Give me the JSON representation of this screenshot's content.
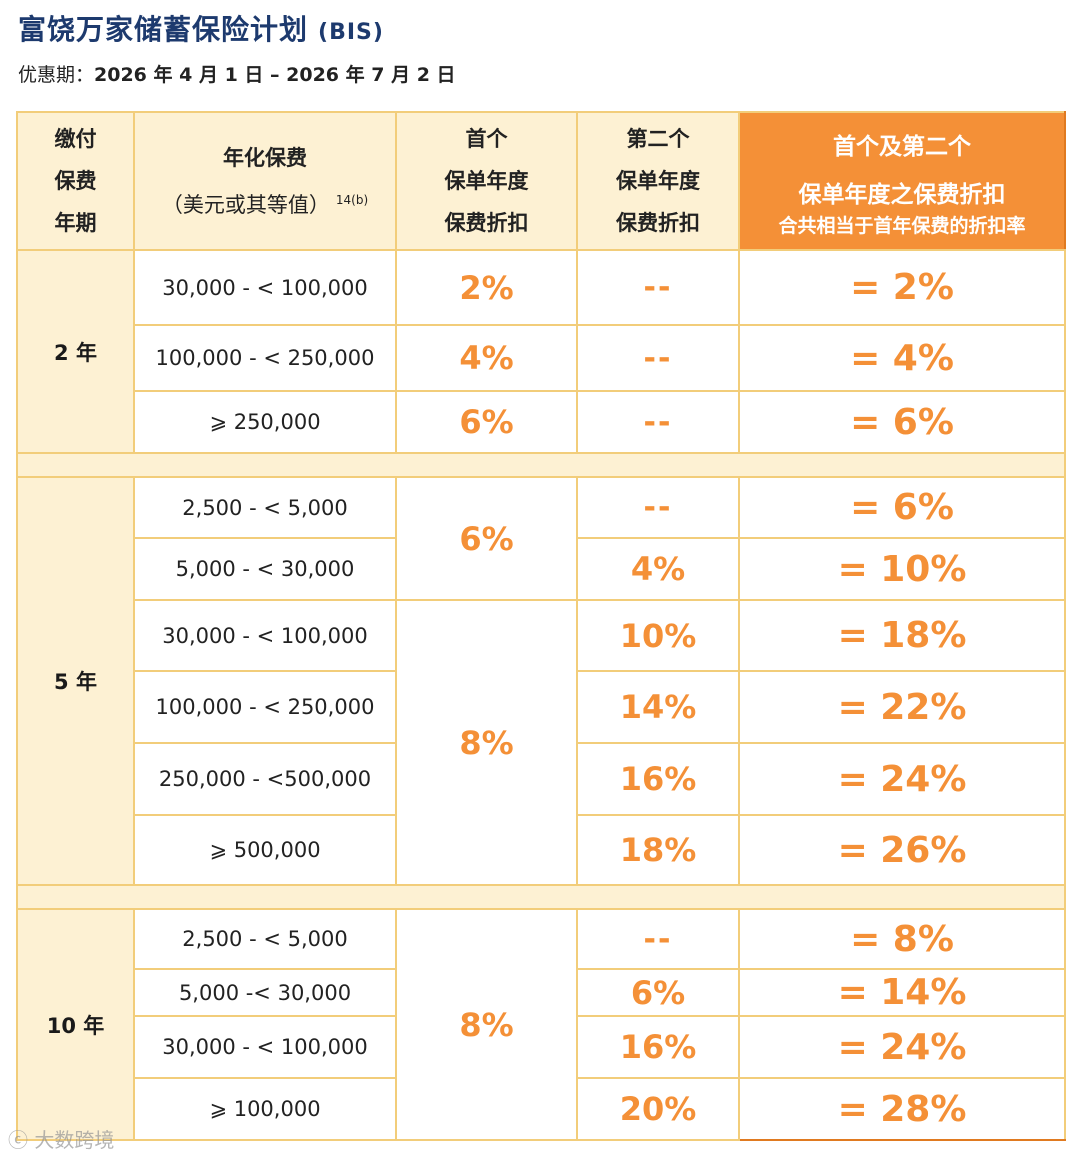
{
  "title": "富饶万家储蓄保险计划",
  "title_code": "(BIS)",
  "promo": {
    "label": "优惠期：",
    "text": "2026 年 4 月 1 日 – 2026 年 7 月 2 日"
  },
  "headers": {
    "term_line1": "缴付",
    "term_line2": "保费",
    "term_line3": "年期",
    "premium_line1": "年化保费",
    "premium_line2": "（美元或其等值）",
    "premium_note": "14(b)",
    "first_line1": "首个",
    "first_line2": "保单年度",
    "first_line3": "保费折扣",
    "second_line1": "第二个",
    "second_line2": "保单年度",
    "second_line3": "保费折扣",
    "total_line1": "首个及第二个",
    "total_line2": "保单年度之保费折扣",
    "total_line3": "合共相当于首年保费的折扣率"
  },
  "groups": [
    {
      "term": "2 年",
      "rows": [
        {
          "premium": "30,000 - < 100,000",
          "first": "2%",
          "second": "--",
          "total": "= 2%"
        },
        {
          "premium": "100,000 - < 250,000",
          "first": "4%",
          "second": "--",
          "total": "= 4%"
        },
        {
          "premium": "⩾ 250,000",
          "first": "6%",
          "second": "--",
          "total": "= 6%"
        }
      ]
    },
    {
      "term": "5 年",
      "first_a": "6%",
      "first_b": "8%",
      "rows": [
        {
          "premium": "2,500 - < 5,000",
          "second": "--",
          "total": "= 6%"
        },
        {
          "premium": "5,000 - < 30,000",
          "second": "4%",
          "total": "= 10%"
        },
        {
          "premium": "30,000 - < 100,000",
          "second": "10%",
          "total": "= 18%"
        },
        {
          "premium": "100,000 - < 250,000",
          "second": "14%",
          "total": "= 22%"
        },
        {
          "premium": "250,000 - <500,000",
          "second": "16%",
          "total": "= 24%"
        },
        {
          "premium": "⩾ 500,000",
          "second": "18%",
          "total": "= 26%"
        }
      ]
    },
    {
      "term": "10 年",
      "first": "8%",
      "rows": [
        {
          "premium": "2,500 - < 5,000",
          "second": "--",
          "total": "= 8%"
        },
        {
          "premium": "5,000 -< 30,000",
          "second": "6%",
          "total": "= 14%"
        },
        {
          "premium": "30,000 - < 100,000",
          "second": "16%",
          "total": "= 24%"
        },
        {
          "premium": "⩾ 100,000",
          "second": "20%",
          "total": "= 28%"
        }
      ]
    }
  ],
  "watermark": "大数跨境",
  "colors": {
    "title": "#1d3a6e",
    "accent": "#f49037",
    "header_bg": "#fdf1d3",
    "border": "#f2cd7a"
  }
}
